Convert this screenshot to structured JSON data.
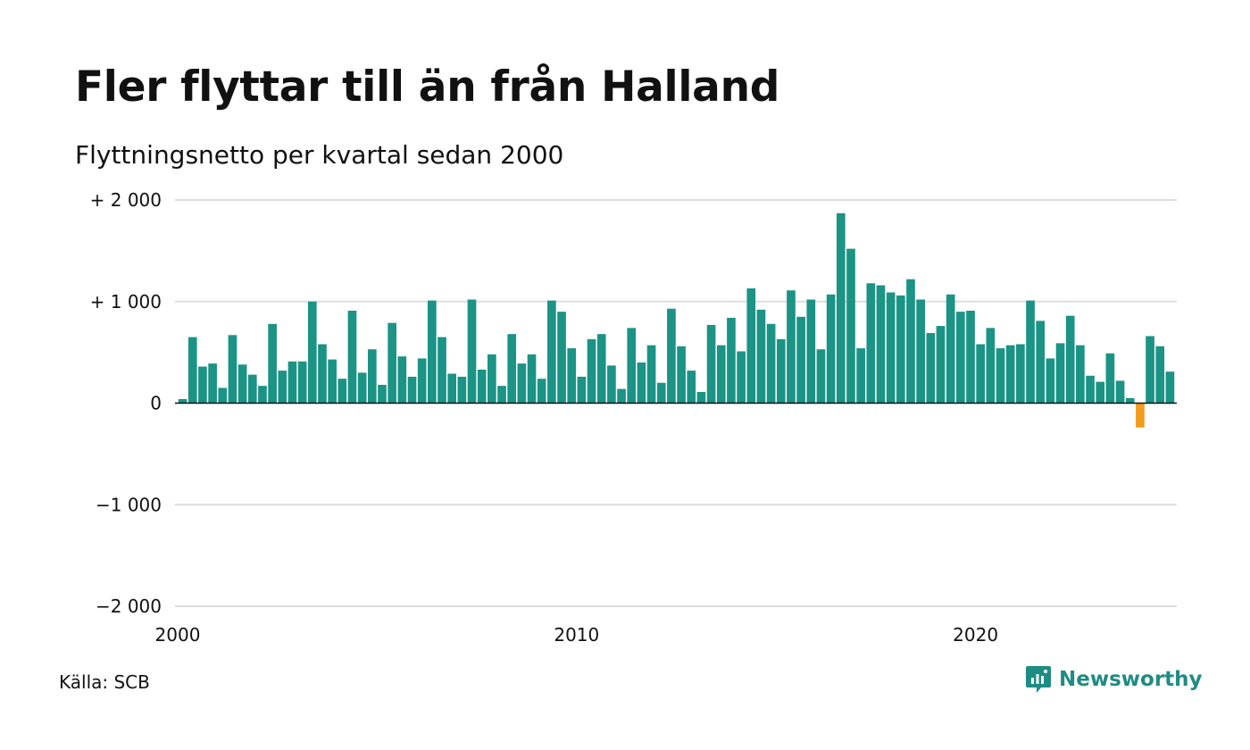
{
  "title": "Fler flyttar till än från Halland",
  "subtitle": "Flyttningsnetto per kvartal sedan 2000",
  "source": "Källa: SCB",
  "brand": "Newsworthy",
  "colors": {
    "positive": "#1b9385",
    "negative": "#f39c1d",
    "grid": "#dddddd",
    "brand": "#1f8c83"
  },
  "chart_data": {
    "type": "bar",
    "title": "Fler flyttar till än från Halland",
    "subtitle": "Flyttningsnetto per kvartal sedan 2000",
    "x_start": "2000 Q1",
    "x_tick_labels": [
      "2000",
      "2010",
      "2020"
    ],
    "y_tick_labels": [
      "+ 2 000",
      "+ 1 000",
      "0",
      "−1 000",
      "−2 000"
    ],
    "y_ticks": [
      2000,
      1000,
      0,
      -1000,
      -2000
    ],
    "ylim": [
      -2000,
      2000
    ],
    "grid": true,
    "values": [
      40,
      650,
      360,
      390,
      150,
      670,
      380,
      280,
      170,
      780,
      320,
      410,
      410,
      1000,
      580,
      430,
      240,
      910,
      300,
      530,
      180,
      790,
      460,
      260,
      440,
      1010,
      650,
      290,
      260,
      1020,
      330,
      480,
      170,
      680,
      390,
      480,
      240,
      1010,
      900,
      540,
      260,
      630,
      680,
      370,
      140,
      740,
      400,
      570,
      200,
      930,
      560,
      320,
      110,
      770,
      570,
      840,
      510,
      1130,
      920,
      780,
      630,
      1110,
      850,
      1020,
      530,
      1070,
      1870,
      1520,
      540,
      1180,
      1160,
      1090,
      1060,
      1220,
      1020,
      690,
      760,
      1070,
      900,
      910,
      580,
      740,
      540,
      570,
      580,
      1010,
      810,
      440,
      590,
      860,
      570,
      270,
      210,
      490,
      220,
      50,
      -240,
      660,
      560,
      310
    ]
  }
}
